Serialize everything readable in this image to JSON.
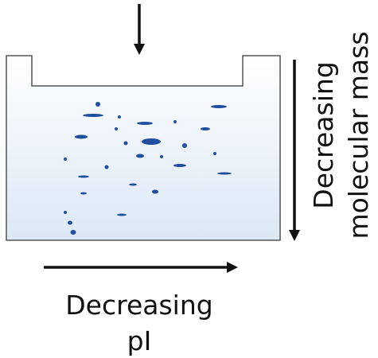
{
  "mass_label": {
    "lines": [
      "Decreasing",
      "molecular mass"
    ]
  },
  "pi_label": {
    "lines": [
      "Decreasing",
      "pI"
    ]
  }
}
